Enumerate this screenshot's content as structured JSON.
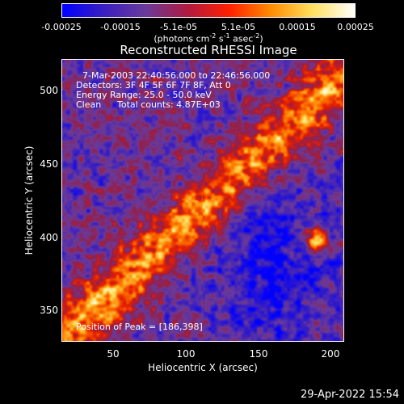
{
  "colorbar": {
    "tick_labels": [
      "-0.00025",
      "-0.00015",
      "-5.1e-05",
      "5.1e-05",
      "0.00015",
      "0.00025"
    ],
    "units_prefix": "(photons cm",
    "units_exp1": "-2",
    "units_mid1": " s",
    "units_exp2": "-1",
    "units_mid2": " asec",
    "units_exp3": "-2",
    "units_suffix": ")",
    "gradient_colors": [
      "#0000ff",
      "#3a1fc0",
      "#6a3a9a",
      "#b01a40",
      "#ff2000",
      "#ff8c00",
      "#ffe060",
      "#ffffff"
    ]
  },
  "image": {
    "title": "Reconstructed RHESSI Image",
    "info": {
      "time_range": "7-Mar-2003 22:40:56.000 to 22:46:56.000",
      "detectors": "Detectors: 3F 4F 5F 6F 7F 8F, Att 0",
      "energy_range": "Energy Range: 25.0 - 50.0 keV",
      "clean_label": "Clean",
      "total_counts": "Total counts: 4.87E+03"
    },
    "peak": "Position of Peak = [186,398]"
  },
  "axes": {
    "x_label": "Heliocentric X (arcsec)",
    "y_label": "Heliocentric Y (arcsec)",
    "x_ticks": [
      "50",
      "100",
      "150",
      "200"
    ],
    "y_ticks": [
      "350",
      "400",
      "450",
      "500"
    ],
    "x_range": [
      15,
      210
    ],
    "y_range": [
      330,
      525
    ]
  },
  "footer": {
    "timestamp": "29-Apr-2022 15:54"
  }
}
